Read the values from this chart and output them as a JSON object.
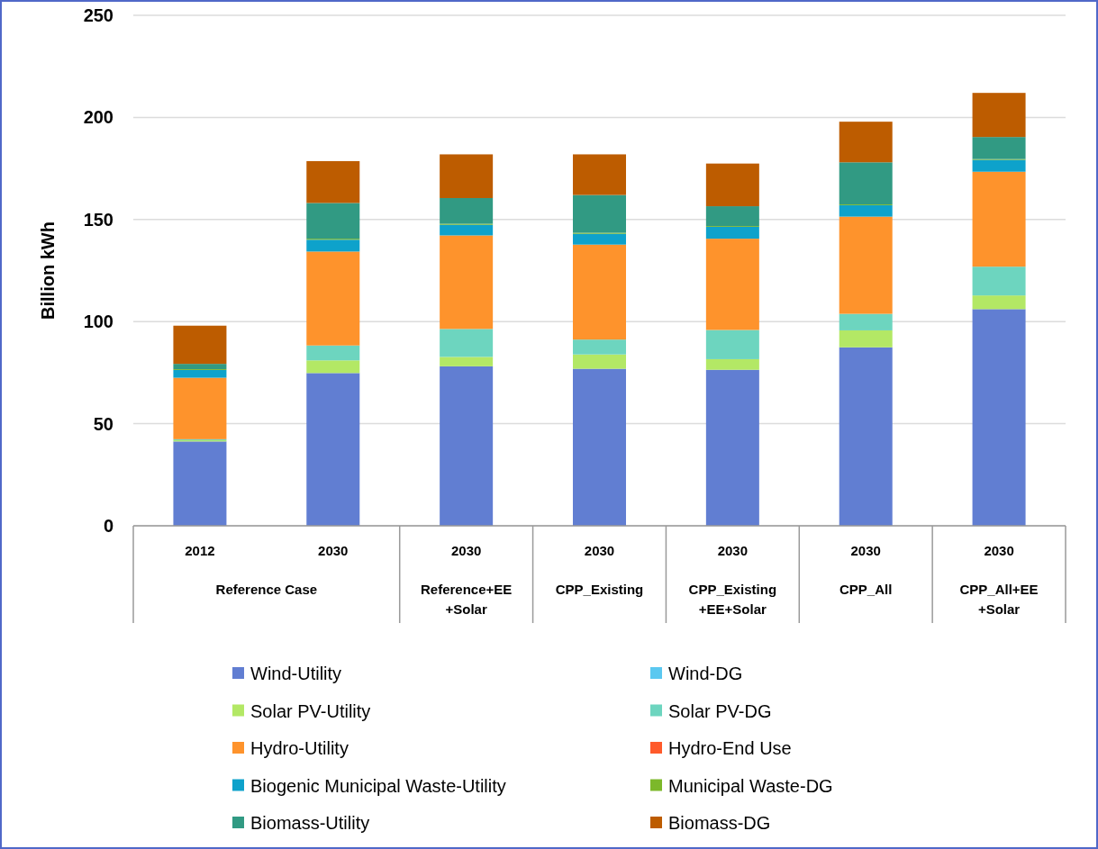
{
  "chart_data": {
    "type": "bar",
    "stacked": true,
    "ylabel": "Billion kWh",
    "categories": [
      "2012",
      "2030",
      "2030",
      "2030",
      "2030",
      "2030",
      "2030"
    ],
    "annotations": [
      "Reference Case",
      "Reference+EE +Solar",
      "CPP_Existing",
      "CPP_Existing +EE+Solar",
      "CPP_All",
      "CPP_All+EE +Solar"
    ],
    "ylim": [
      0,
      250
    ],
    "yticks": [
      0,
      50,
      100,
      150,
      200,
      250
    ],
    "grid": "y",
    "legend": "bottom",
    "series": [
      {
        "name": "Wind-Utility",
        "color": "#617ed2",
        "values": [
          41.3,
          74.8,
          78.1,
          76.9,
          76.4,
          87.4,
          106.1
        ]
      },
      {
        "name": "Wind-DG",
        "color": "#5bc8f0",
        "values": [
          0,
          0,
          0,
          0,
          0,
          0,
          0
        ]
      },
      {
        "name": "Solar PV-Utility",
        "color": "#b3e865",
        "values": [
          0.6,
          6.2,
          4.6,
          7.0,
          5.2,
          8.3,
          6.7
        ]
      },
      {
        "name": "Solar PV-DG",
        "color": "#6dd5bf",
        "values": [
          0.5,
          7.3,
          13.7,
          7.3,
          14.3,
          8.1,
          14.1
        ]
      },
      {
        "name": "Hydro-Utility",
        "color": "#fe932c",
        "values": [
          30.1,
          46.0,
          45.8,
          46.5,
          44.7,
          47.6,
          46.5
        ]
      },
      {
        "name": "Hydro-End Use",
        "color": "#ff5a2b",
        "values": [
          0,
          0,
          0,
          0,
          0,
          0,
          0
        ]
      },
      {
        "name": "Biogenic Municipal Waste-Utility",
        "color": "#0ea2cb",
        "values": [
          3.8,
          5.8,
          5.2,
          5.3,
          5.8,
          5.6,
          5.8
        ]
      },
      {
        "name": "Municipal Waste-DG",
        "color": "#7cb82a",
        "values": [
          0.4,
          0.5,
          0.5,
          0.5,
          0.4,
          0.4,
          0.4
        ]
      },
      {
        "name": "Biomass-Utility",
        "color": "#319a83",
        "values": [
          2.6,
          17.5,
          12.6,
          18.5,
          9.7,
          20.6,
          10.8
        ]
      },
      {
        "name": "Biomass-DG",
        "color": "#bd5c00",
        "values": [
          18.7,
          20.5,
          21.4,
          19.9,
          20.9,
          19.9,
          21.6
        ]
      }
    ]
  }
}
